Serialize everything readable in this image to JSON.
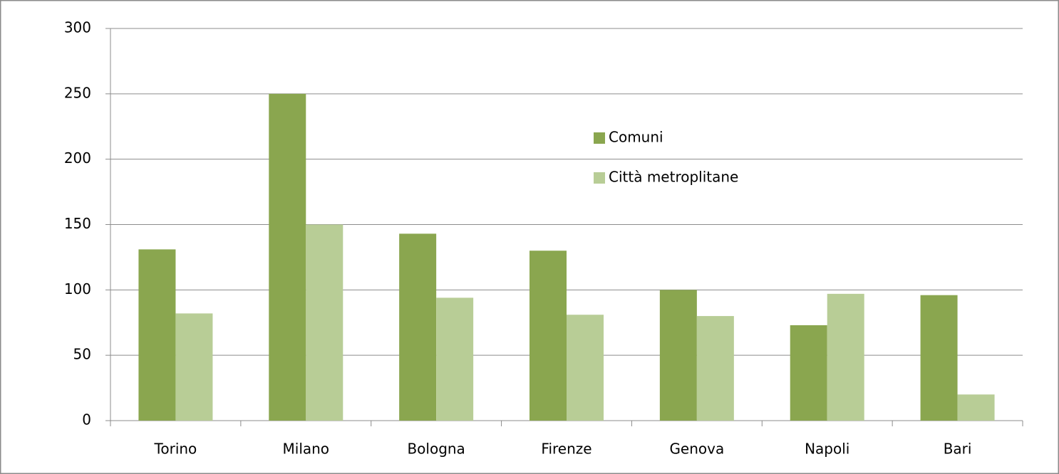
{
  "chart_data": {
    "type": "bar",
    "categories": [
      "Torino",
      "Milano",
      "Bologna",
      "Firenze",
      "Genova",
      "Napoli",
      "Bari"
    ],
    "series": [
      {
        "name": "Comuni",
        "color": "#8aa64f",
        "values": [
          131,
          250,
          143,
          130,
          100,
          73,
          96
        ]
      },
      {
        "name": "Città metroplitane",
        "color": "#b8cd96",
        "values": [
          82,
          150,
          94,
          81,
          80,
          97,
          20
        ]
      }
    ],
    "ylim": [
      0,
      300
    ],
    "yticks": [
      0,
      50,
      100,
      150,
      200,
      250,
      300
    ],
    "grid": true
  }
}
